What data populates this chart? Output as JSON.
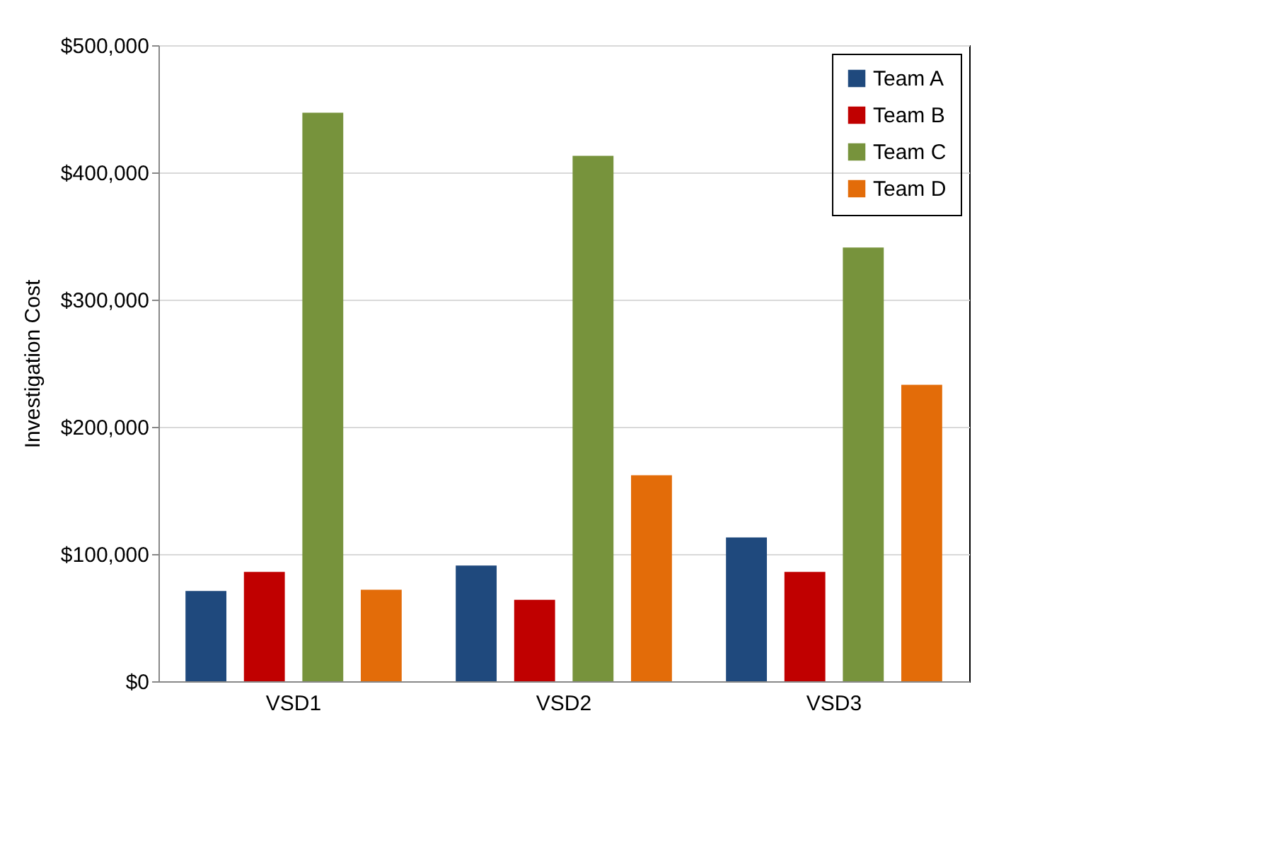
{
  "chart_data": {
    "type": "bar",
    "ylabel": "Investigation Cost",
    "categories": [
      "VSD1",
      "VSD2",
      "VSD3"
    ],
    "series": [
      {
        "name": "Team A",
        "color": "#1f497d",
        "values": [
          71000,
          91000,
          113000
        ]
      },
      {
        "name": "Team B",
        "color": "#c00000",
        "values": [
          86000,
          64000,
          86000
        ]
      },
      {
        "name": "Team C",
        "color": "#77933c",
        "values": [
          447000,
          413000,
          341000
        ]
      },
      {
        "name": "Team D",
        "color": "#e36c09",
        "values": [
          72000,
          162000,
          233000
        ]
      }
    ],
    "ylim": [
      0,
      500000
    ],
    "yticks": [
      {
        "value": 0,
        "label": "$0"
      },
      {
        "value": 100000,
        "label": "$100,000"
      },
      {
        "value": 200000,
        "label": "$200,000"
      },
      {
        "value": 300000,
        "label": "$300,000"
      },
      {
        "value": 400000,
        "label": "$400,000"
      },
      {
        "value": 500000,
        "label": "$500,000"
      }
    ],
    "grid": "y",
    "legend": "top right"
  }
}
